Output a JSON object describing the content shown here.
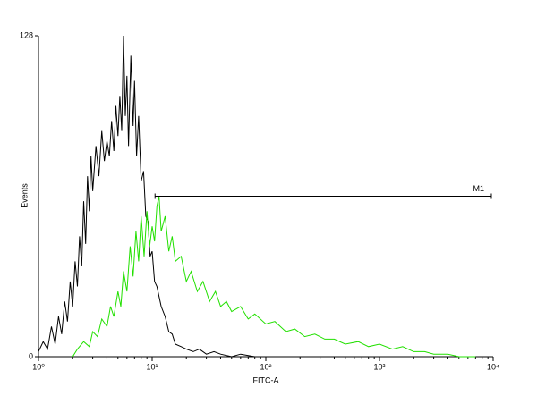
{
  "chart_data": {
    "type": "line",
    "x_label": "FITC-A",
    "y_label": "Events",
    "x_scale": "log",
    "xlim": [
      1,
      10000
    ],
    "xticks": [
      {
        "value": 1,
        "label": "10⁰"
      },
      {
        "value": 10,
        "label": "10¹"
      },
      {
        "value": 100,
        "label": "10²"
      },
      {
        "value": 1000,
        "label": "10³"
      },
      {
        "value": 10000,
        "label": "10⁴"
      }
    ],
    "xminor_ticks": [
      2,
      3,
      4,
      5,
      6,
      7,
      8,
      9,
      20,
      30,
      40,
      50,
      60,
      70,
      80,
      90,
      200,
      300,
      400,
      500,
      600,
      700,
      800,
      900,
      2000,
      3000,
      4000,
      5000,
      6000,
      7000,
      8000,
      9000
    ],
    "ylim": [
      0,
      128
    ],
    "yticks": [
      0,
      128
    ],
    "marker": {
      "label": "M1",
      "x": [
        10.6,
        9640
      ],
      "y": 64
    },
    "series": [
      {
        "color": "#000000",
        "x": [
          1.0,
          1.1,
          1.2,
          1.3,
          1.4,
          1.5,
          1.6,
          1.7,
          1.8,
          1.9,
          2.0,
          2.1,
          2.2,
          2.3,
          2.4,
          2.5,
          2.6,
          2.7,
          2.8,
          2.9,
          3.0,
          3.2,
          3.4,
          3.6,
          3.8,
          4.0,
          4.2,
          4.4,
          4.6,
          4.8,
          5.0,
          5.2,
          5.4,
          5.6,
          5.8,
          6.0,
          6.2,
          6.5,
          6.8,
          7.0,
          7.3,
          7.6,
          8.0,
          8.4,
          8.8,
          9.2,
          9.6,
          10,
          10.5,
          11,
          12,
          13,
          14,
          15,
          16,
          18,
          20,
          23,
          26,
          30,
          35,
          40,
          50,
          60,
          80
        ],
        "values": [
          2,
          6,
          3,
          12,
          5,
          16,
          9,
          22,
          14,
          30,
          20,
          38,
          28,
          48,
          36,
          62,
          45,
          72,
          58,
          80,
          66,
          84,
          72,
          90,
          78,
          86,
          80,
          94,
          82,
          100,
          88,
          104,
          90,
          128,
          96,
          112,
          84,
          120,
          92,
          110,
          80,
          96,
          70,
          74,
          56,
          54,
          40,
          42,
          30,
          28,
          20,
          16,
          10,
          9,
          5,
          4,
          3,
          2,
          3,
          1,
          2,
          1,
          0,
          1,
          0
        ]
      },
      {
        "color": "#22e000",
        "x": [
          2.0,
          2.2,
          2.5,
          2.8,
          3.0,
          3.3,
          3.6,
          4.0,
          4.3,
          4.6,
          5.0,
          5.3,
          5.6,
          6.0,
          6.4,
          6.8,
          7.2,
          7.6,
          8.0,
          8.5,
          9.0,
          9.5,
          10,
          10.5,
          11,
          11.5,
          12,
          13,
          14,
          15,
          16,
          18,
          20,
          22,
          25,
          28,
          32,
          36,
          40,
          45,
          50,
          60,
          70,
          80,
          100,
          120,
          150,
          180,
          220,
          270,
          330,
          400,
          500,
          650,
          800,
          1000,
          1300,
          1600,
          2000,
          2500,
          3000,
          4000,
          5000,
          7000
        ],
        "values": [
          0,
          3,
          6,
          4,
          10,
          8,
          15,
          12,
          20,
          16,
          26,
          20,
          34,
          26,
          44,
          32,
          50,
          38,
          56,
          40,
          58,
          44,
          52,
          46,
          60,
          64,
          50,
          56,
          42,
          48,
          38,
          40,
          30,
          34,
          26,
          30,
          22,
          26,
          20,
          22,
          18,
          20,
          15,
          17,
          13,
          14,
          10,
          11,
          8,
          9,
          7,
          7,
          5,
          6,
          4,
          5,
          3,
          4,
          2,
          2,
          1,
          1,
          0,
          0
        ]
      }
    ]
  }
}
